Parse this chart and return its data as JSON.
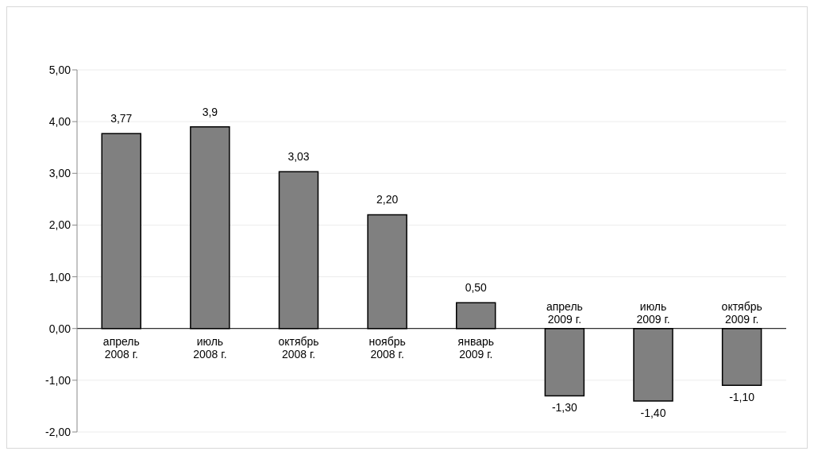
{
  "chart_data": {
    "type": "bar",
    "categories": [
      "апрель 2008 г.",
      "июль 2008 г.",
      "октябрь 2008 г.",
      "ноябрь 2008 г.",
      "январь 2009 г.",
      "апрель 2009 г.",
      "июль 2009 г.",
      "октябрь 2009 г."
    ],
    "values": [
      3.77,
      3.9,
      3.03,
      2.2,
      0.5,
      -1.3,
      -1.4,
      -1.1
    ],
    "value_labels": [
      "3,77",
      "3,9",
      "3,03",
      "2,20",
      "0,50",
      "-1,30",
      "-1,40",
      "-1,10"
    ],
    "color": "#808080",
    "ylim": [
      -2,
      5
    ],
    "yticks": [
      {
        "value": -2,
        "label": "-2,00"
      },
      {
        "value": -1,
        "label": "-1,00"
      },
      {
        "value": 0,
        "label": "0,00"
      },
      {
        "value": 1,
        "label": "1,00"
      },
      {
        "value": 2,
        "label": "2,00"
      },
      {
        "value": 3,
        "label": "3,00"
      },
      {
        "value": 4,
        "label": "4,00"
      },
      {
        "value": 5,
        "label": "5,00"
      }
    ],
    "grid": "y"
  }
}
